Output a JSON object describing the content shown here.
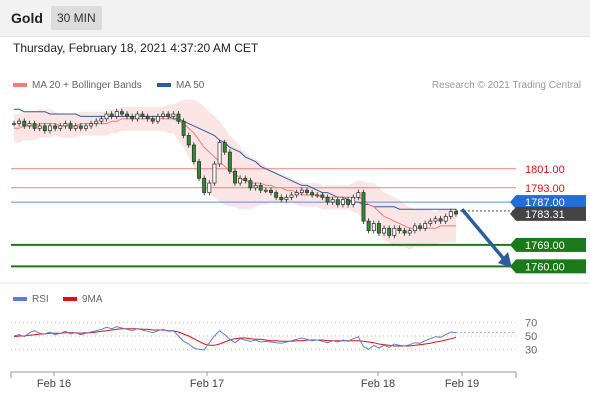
{
  "header": {
    "instrument": "Gold",
    "timeframe": "30 MIN",
    "datetime": "Thursday, February 18, 2021 4:37:20 AM CET"
  },
  "legend": {
    "ma20": {
      "label": "MA 20 + Bollinger Bands",
      "color": "#f08080"
    },
    "ma50": {
      "label": "MA 50",
      "color": "#2e5d9f"
    },
    "credit": "Research © 2021 Trading Central"
  },
  "rsi_legend": {
    "rsi": {
      "label": "RSI",
      "color": "#5b7fd6"
    },
    "ma9": {
      "label": "9MA",
      "color": "#dd1111"
    }
  },
  "colors": {
    "up": "#ffffff",
    "down": "#2d8a2d",
    "resistance": "#dd1111",
    "support": "#1a7a1a",
    "pivot": "#1f6fd6",
    "current": "#444444",
    "band_fill": "#fadcdc",
    "arrow": "#2e5d9f"
  },
  "chart_data": {
    "type": "candlestick",
    "ylim": [
      1753,
      1832
    ],
    "x_ticks": [
      "Feb 16",
      "Feb 17",
      "Feb 18",
      "Feb 19"
    ],
    "levels": [
      {
        "label": "1801.00",
        "value": 1801.0,
        "kind": "resistance"
      },
      {
        "label": "1793.00",
        "value": 1793.0,
        "kind": "resistance"
      },
      {
        "label": "1787.00",
        "value": 1787.0,
        "kind": "pivot"
      },
      {
        "label": "1783.31",
        "value": 1783.31,
        "kind": "current"
      },
      {
        "label": "1769.00",
        "value": 1769.0,
        "kind": "support"
      },
      {
        "label": "1760.00",
        "value": 1760.0,
        "kind": "support"
      }
    ],
    "closes": [
      1820,
      1821,
      1819,
      1820,
      1818,
      1819,
      1817,
      1819,
      1818,
      1819,
      1820,
      1818,
      1819,
      1818,
      1819,
      1820,
      1821,
      1822,
      1824,
      1823,
      1825,
      1824,
      1823,
      1822,
      1824,
      1823,
      1822,
      1821,
      1823,
      1824,
      1823,
      1824,
      1821,
      1815,
      1811,
      1804,
      1797,
      1791,
      1795,
      1803,
      1812,
      1808,
      1800,
      1795,
      1797,
      1796,
      1793,
      1794,
      1792,
      1792,
      1791,
      1789,
      1788,
      1789,
      1790,
      1791,
      1792,
      1791,
      1790,
      1790,
      1789,
      1787,
      1788,
      1786,
      1788,
      1786,
      1789,
      1791,
      1779,
      1775,
      1778,
      1774,
      1776,
      1773,
      1776,
      1775,
      1774,
      1775,
      1777,
      1776,
      1778,
      1779,
      1780,
      1779,
      1781,
      1783,
      1782
    ],
    "ma20": [
      1818,
      1818,
      1819,
      1819,
      1819,
      1820,
      1820,
      1820,
      1820,
      1819,
      1819,
      1819,
      1819,
      1820,
      1820,
      1820,
      1820,
      1820,
      1820,
      1821,
      1821,
      1822,
      1822,
      1822,
      1822,
      1822,
      1822,
      1822,
      1822,
      1822,
      1822,
      1822,
      1821,
      1820,
      1818,
      1816,
      1813,
      1810,
      1808,
      1806,
      1804,
      1802,
      1800,
      1799,
      1797,
      1796,
      1795,
      1795,
      1795,
      1794,
      1794,
      1793,
      1793,
      1792,
      1792,
      1791,
      1790,
      1790,
      1790,
      1790,
      1789,
      1789,
      1789,
      1789,
      1789,
      1789,
      1789,
      1789,
      1788,
      1786,
      1785,
      1783,
      1781,
      1780,
      1779,
      1778,
      1777,
      1776,
      1776,
      1776,
      1776,
      1776,
      1776,
      1777,
      1777,
      1777,
      1777
    ],
    "band_width": [
      6,
      6,
      6,
      6,
      6,
      6,
      6,
      6,
      5,
      5,
      5,
      5,
      5,
      5,
      5,
      5,
      5,
      5,
      5,
      5,
      5,
      5,
      5,
      5,
      5,
      5,
      5,
      5,
      5,
      5,
      6,
      6,
      8,
      10,
      12,
      14,
      16,
      17,
      17,
      17,
      17,
      16,
      15,
      14,
      13,
      12,
      11,
      10,
      9,
      8,
      7,
      6,
      6,
      6,
      5,
      5,
      5,
      5,
      5,
      5,
      5,
      5,
      5,
      5,
      5,
      5,
      6,
      7,
      8,
      9,
      10,
      10,
      10,
      10,
      10,
      10,
      9,
      9,
      8,
      8,
      8,
      8,
      7,
      7,
      7,
      7,
      7
    ],
    "ma50": [
      1826,
      1826,
      1825,
      1825,
      1825,
      1825,
      1825,
      1824,
      1824,
      1824,
      1824,
      1824,
      1824,
      1823,
      1823,
      1823,
      1823,
      1823,
      1823,
      1823,
      1823,
      1823,
      1823,
      1823,
      1823,
      1823,
      1823,
      1823,
      1823,
      1823,
      1823,
      1822,
      1822,
      1821,
      1820,
      1819,
      1818,
      1817,
      1816,
      1815,
      1813,
      1812,
      1810,
      1809,
      1808,
      1806,
      1805,
      1804,
      1802,
      1801,
      1800,
      1799,
      1798,
      1797,
      1796,
      1795,
      1794,
      1794,
      1793,
      1792,
      1791,
      1791,
      1790,
      1789,
      1789,
      1788,
      1787,
      1787,
      1786,
      1786,
      1785,
      1785,
      1785,
      1785,
      1785,
      1784,
      1784,
      1784,
      1784,
      1784,
      1784,
      1784,
      1784,
      1784,
      1784,
      1784,
      1784
    ],
    "rsi": [
      50,
      52,
      49,
      55,
      58,
      54,
      53,
      56,
      52,
      54,
      57,
      53,
      55,
      52,
      54,
      56,
      58,
      60,
      63,
      61,
      64,
      62,
      60,
      58,
      61,
      59,
      57,
      55,
      58,
      60,
      57,
      58,
      50,
      42,
      38,
      32,
      30,
      29,
      40,
      50,
      58,
      52,
      45,
      40,
      46,
      44,
      42,
      44,
      41,
      42,
      41,
      40,
      39,
      41,
      43,
      45,
      47,
      45,
      43,
      44,
      42,
      40,
      43,
      41,
      44,
      42,
      46,
      49,
      34,
      30,
      36,
      32,
      36,
      33,
      38,
      36,
      35,
      37,
      40,
      39,
      43,
      46,
      49,
      48,
      52,
      56,
      55
    ],
    "rsi_ma9": [
      49,
      50,
      50,
      51,
      52,
      53,
      53,
      54,
      54,
      54,
      55,
      55,
      55,
      54,
      55,
      55,
      56,
      57,
      58,
      59,
      60,
      61,
      61,
      61,
      61,
      60,
      60,
      59,
      59,
      59,
      58,
      58,
      56,
      53,
      50,
      46,
      42,
      38,
      36,
      36,
      38,
      41,
      44,
      46,
      47,
      47,
      46,
      45,
      45,
      44,
      43,
      43,
      42,
      42,
      42,
      43,
      43,
      44,
      44,
      44,
      44,
      43,
      43,
      43,
      43,
      43,
      43,
      43,
      42,
      41,
      40,
      38,
      37,
      36,
      35,
      35,
      35,
      35,
      36,
      37,
      38,
      39,
      41,
      42,
      44,
      46,
      48
    ],
    "rsi_levels": [
      70,
      50,
      30
    ],
    "forecast": {
      "from": 1784,
      "to": 1761
    }
  }
}
